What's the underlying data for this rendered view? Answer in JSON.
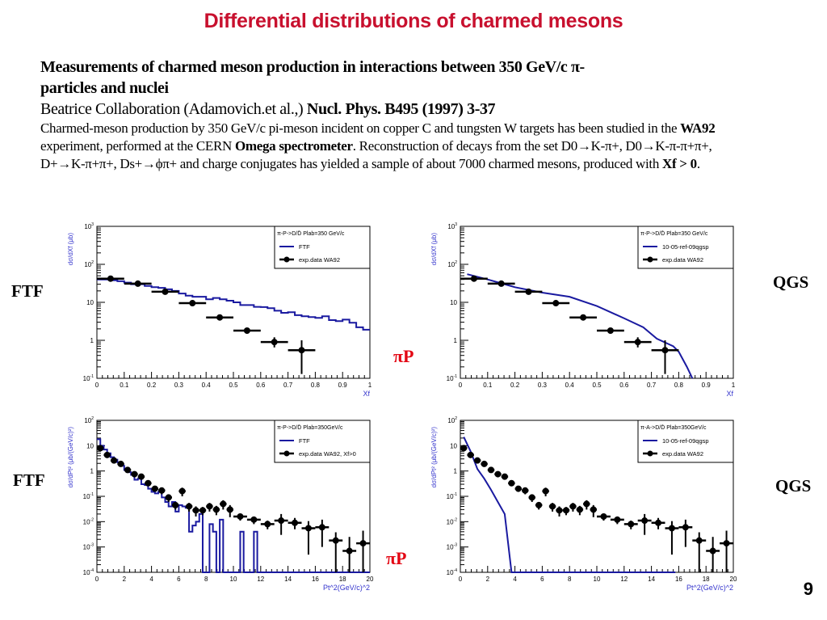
{
  "slide": {
    "title": "Differential distributions of charmed mesons",
    "heading_line1": "Measurements of charmed meson production in interactions between 350 GeV/c π-",
    "heading_line2": "particles and nuclei",
    "cite_plain": "Beatrice Collaboration (Adamovich.et al.,) ",
    "cite_bold": "Nucl. Phys. B495 (1997) 3-37",
    "body_p1": "Charmed-meson production by 350 GeV/c  pi-meson  incident on copper C and tungsten W targets has been studied in the ",
    "body_b1": "WA92",
    "body_p2": " experiment, performed at the CERN ",
    "body_b2": "Omega spectrometer",
    "body_p3": ". Reconstruction of decays from the set D0→K-π+,  D0→K-π-π+π+,  D+→K-π+π+,  Ds+→ϕπ+  and charge conjugates has yielded a sample of about 7000 charmed mesons, produced with ",
    "body_b3": "Xf > 0",
    "body_p4": ".",
    "labels": {
      "ftf_top": "FTF",
      "ftf_bottom": "FTF",
      "qgs_top": "QGS",
      "qgs_bottom": "QGS",
      "pip_top": "πP",
      "pip_bottom": "πP"
    },
    "page_number": "9",
    "colors": {
      "title": "#c8102e",
      "pip": "#e30613",
      "model": "#1a1aa0",
      "axis_label": "#3333cc",
      "data": "#000000"
    }
  },
  "chart_data": [
    {
      "id": "xf-ftf",
      "type": "line",
      "scale_y": "log",
      "xlabel": "Xf",
      "ylabel": "dσ/dXf (μb)",
      "xlim": [
        0,
        1
      ],
      "ylim": [
        0.1,
        1000
      ],
      "xticks": [
        "0",
        "0.1",
        "0.2",
        "0.3",
        "0.4",
        "0.5",
        "0.6",
        "0.7",
        "0.8",
        "0.9",
        "1"
      ],
      "yticks": [
        "10^-1",
        "1",
        "10",
        "10^2",
        "10^3"
      ],
      "legend": {
        "position": "top-right",
        "header": "π-P->D/D̄  Plab=350 GeV/c",
        "entries": [
          "FTF",
          "exp.data WA92"
        ]
      },
      "model": {
        "name": "FTF",
        "style": "step",
        "x": [
          0,
          0.025,
          0.05,
          0.075,
          0.1,
          0.125,
          0.15,
          0.175,
          0.2,
          0.225,
          0.25,
          0.275,
          0.3,
          0.325,
          0.35,
          0.375,
          0.4,
          0.425,
          0.45,
          0.475,
          0.5,
          0.525,
          0.55,
          0.575,
          0.6,
          0.625,
          0.65,
          0.675,
          0.7,
          0.725,
          0.75,
          0.775,
          0.8,
          0.825,
          0.85,
          0.875,
          0.9,
          0.925,
          0.95,
          0.975,
          1.0
        ],
        "y": [
          40,
          40,
          38,
          36,
          33,
          30,
          30,
          27,
          25,
          24,
          22,
          20,
          17,
          15,
          14,
          14,
          12,
          13,
          12,
          11,
          10,
          8.5,
          8.5,
          7.6,
          7.5,
          7,
          6,
          5.3,
          5.5,
          4.6,
          4.3,
          4.1,
          3.9,
          4.3,
          3.4,
          3.2,
          3.5,
          2.9,
          2.2,
          1.9,
          1.3
        ]
      },
      "data": {
        "name": "exp.data WA92",
        "x": [
          0.05,
          0.15,
          0.25,
          0.35,
          0.45,
          0.55,
          0.65,
          0.75
        ],
        "xerr": 0.05,
        "y": [
          42,
          31,
          19,
          9.5,
          4.0,
          1.8,
          0.9,
          0.55
        ],
        "yerr_lo": [
          4,
          3,
          2,
          1,
          0.5,
          0.3,
          0.25,
          0.42
        ],
        "yerr_hi": [
          4,
          3,
          2,
          1,
          0.5,
          0.3,
          0.3,
          0.45
        ]
      }
    },
    {
      "id": "xf-qgs",
      "type": "line",
      "scale_y": "log",
      "xlabel": "Xf",
      "ylabel": "dσ/dXf (μb)",
      "xlim": [
        0,
        1
      ],
      "ylim": [
        0.1,
        1000
      ],
      "xticks": [
        "0",
        "0.1",
        "0.2",
        "0.3",
        "0.4",
        "0.5",
        "0.6",
        "0.7",
        "0.8",
        "0.9",
        "1"
      ],
      "yticks": [
        "10^-1",
        "1",
        "10",
        "10^2",
        "10^3"
      ],
      "legend": {
        "position": "top-right",
        "header": "π-P->D/D̄  Plab=350 GeV/c",
        "entries": [
          "10-05-ref-09qgsp",
          "exp.data WA92"
        ]
      },
      "model": {
        "name": "10-05-ref-09qgsp",
        "style": "line",
        "x": [
          0.025,
          0.1,
          0.2,
          0.3,
          0.4,
          0.5,
          0.6,
          0.67,
          0.72,
          0.78,
          0.8,
          0.83,
          0.85
        ],
        "y": [
          55,
          40,
          25,
          18,
          14,
          8,
          3.8,
          2.2,
          1.1,
          0.7,
          0.5,
          0.2,
          0.1
        ]
      },
      "data": {
        "name": "exp.data WA92",
        "x": [
          0.05,
          0.15,
          0.25,
          0.35,
          0.45,
          0.55,
          0.65,
          0.75
        ],
        "xerr": 0.05,
        "y": [
          42,
          31,
          19,
          9.5,
          4.0,
          1.8,
          0.9,
          0.55
        ],
        "yerr_lo": [
          4,
          3,
          2,
          1,
          0.5,
          0.3,
          0.25,
          0.42
        ],
        "yerr_hi": [
          4,
          3,
          2,
          1,
          0.5,
          0.3,
          0.3,
          0.45
        ]
      }
    },
    {
      "id": "pt2-ftf",
      "type": "line",
      "scale_y": "log",
      "xlabel": "Pt^2(GeV/c)^2",
      "ylabel": "dσ/dPt² (μb/(GeV/c)²)",
      "xlim": [
        0,
        20
      ],
      "ylim": [
        0.0001,
        100
      ],
      "xticks": [
        "0",
        "2",
        "4",
        "6",
        "8",
        "10",
        "12",
        "14",
        "16",
        "18",
        "20"
      ],
      "yticks": [
        "10^-4",
        "10^-3",
        "10^-2",
        "10^-1",
        "1",
        "10",
        "10^2"
      ],
      "legend": {
        "position": "top-right",
        "header": "π-P->D/D̄  Plab=350GeV/c",
        "entries": [
          "FTF",
          "exp.data WA92, Xf>0"
        ]
      },
      "model": {
        "name": "FTF",
        "style": "step",
        "x": [
          0,
          0.25,
          0.5,
          0.75,
          1,
          1.25,
          1.5,
          1.75,
          2,
          2.25,
          2.5,
          2.75,
          3,
          3.25,
          3.5,
          3.75,
          4,
          4.25,
          4.5,
          4.75,
          5,
          5.25,
          5.5,
          5.75,
          6,
          6.25,
          6.5,
          6.75,
          7,
          7.25,
          7.5,
          7.75,
          8,
          8.25,
          8.5,
          8.75,
          9,
          9.25,
          9.5,
          9.75,
          10,
          10.25,
          10.5,
          10.75,
          11,
          11.25,
          11.5,
          11.75,
          12,
          20
        ],
        "y": [
          18,
          10,
          7,
          5,
          3.5,
          2.8,
          2.2,
          1.6,
          1.1,
          0.9,
          0.7,
          0.45,
          0.5,
          0.3,
          0.28,
          0.2,
          0.15,
          0.13,
          0.15,
          0.09,
          0.06,
          0.04,
          0.06,
          0.025,
          0.045,
          0.04,
          0.035,
          0.004,
          0.007,
          0.01,
          0.02,
          0.0001,
          0.0001,
          0.008,
          0.004,
          0.0001,
          0.012,
          0.0001,
          0.0001,
          0.0001,
          0.0001,
          0.0001,
          0.004,
          0.0001,
          0.0001,
          0.0001,
          0.004,
          0.0001,
          0.0001,
          0.0001
        ]
      },
      "data": {
        "name": "exp.data WA92, Xf>0",
        "x": [
          0.25,
          0.75,
          1.25,
          1.75,
          2.25,
          2.75,
          3.25,
          3.75,
          4.25,
          4.75,
          5.25,
          5.75,
          6.25,
          6.75,
          7.25,
          7.75,
          8.25,
          8.75,
          9.25,
          9.75,
          10.5,
          11.5,
          12.5,
          13.5,
          14.5,
          15.5,
          16.5,
          17.5,
          18.5,
          19.5
        ],
        "xerr": [
          0.25,
          0.25,
          0.25,
          0.25,
          0.25,
          0.25,
          0.25,
          0.25,
          0.25,
          0.25,
          0.25,
          0.25,
          0.25,
          0.25,
          0.25,
          0.25,
          0.25,
          0.25,
          0.25,
          0.25,
          0.5,
          0.5,
          0.5,
          0.5,
          0.5,
          0.5,
          0.5,
          0.5,
          0.5,
          0.5
        ],
        "y": [
          8,
          4.3,
          2.6,
          1.9,
          1.1,
          0.75,
          0.6,
          0.33,
          0.2,
          0.17,
          0.09,
          0.045,
          0.16,
          0.04,
          0.028,
          0.028,
          0.04,
          0.03,
          0.05,
          0.03,
          0.016,
          0.012,
          0.008,
          0.011,
          0.009,
          0.0055,
          0.006,
          0.0018,
          0.0007,
          0.0014
        ],
        "yerr_lo": [
          2,
          0.8,
          0.5,
          0.4,
          0.2,
          0.15,
          0.15,
          0.08,
          0.05,
          0.05,
          0.03,
          0.015,
          0.06,
          0.015,
          0.012,
          0.01,
          0.015,
          0.012,
          0.02,
          0.015,
          0.005,
          0.004,
          0.003,
          0.008,
          0.004,
          0.005,
          0.005,
          0.0017,
          0.0006,
          0.0013
        ],
        "yerr_hi": [
          2,
          0.8,
          0.5,
          0.4,
          0.2,
          0.15,
          0.15,
          0.08,
          0.05,
          0.05,
          0.03,
          0.015,
          0.06,
          0.015,
          0.012,
          0.01,
          0.015,
          0.012,
          0.02,
          0.015,
          0.005,
          0.004,
          0.003,
          0.009,
          0.005,
          0.005,
          0.006,
          0.002,
          0.0018,
          0.003
        ]
      }
    },
    {
      "id": "pt2-qgs",
      "type": "line",
      "scale_y": "log",
      "xlabel": "Pt^2(GeV/c)^2",
      "ylabel": "dσ/dPt² (μb/(GeV/c)²)",
      "xlim": [
        0,
        20
      ],
      "ylim": [
        0.0001,
        100
      ],
      "xticks": [
        "0",
        "2",
        "4",
        "6",
        "8",
        "10",
        "12",
        "14",
        "16",
        "18",
        "20"
      ],
      "yticks": [
        "10^-4",
        "10^-3",
        "10^-2",
        "10^-1",
        "1",
        "10",
        "10^2"
      ],
      "legend": {
        "position": "top-right",
        "header": "π-A->D/D̄  Plab=350GeV/c",
        "entries": [
          "10-05-ref-09qgsp",
          "exp.data WA92"
        ]
      },
      "model": {
        "name": "10-05-ref-09qgsp",
        "style": "line",
        "x": [
          0.25,
          0.75,
          1.25,
          1.75,
          2.25,
          2.75,
          3.25,
          3.75,
          4,
          8,
          12,
          15.75
        ],
        "y": [
          22,
          6,
          1.2,
          0.5,
          0.18,
          0.06,
          0.02,
          0.0001,
          0.0001,
          0.0001,
          0.0001,
          0.0001
        ]
      },
      "data": {
        "name": "exp.data WA92",
        "x": [
          0.25,
          0.75,
          1.25,
          1.75,
          2.25,
          2.75,
          3.25,
          3.75,
          4.25,
          4.75,
          5.25,
          5.75,
          6.25,
          6.75,
          7.25,
          7.75,
          8.25,
          8.75,
          9.25,
          9.75,
          10.5,
          11.5,
          12.5,
          13.5,
          14.5,
          15.5,
          16.5,
          17.5,
          18.5,
          19.5
        ],
        "xerr": [
          0.25,
          0.25,
          0.25,
          0.25,
          0.25,
          0.25,
          0.25,
          0.25,
          0.25,
          0.25,
          0.25,
          0.25,
          0.25,
          0.25,
          0.25,
          0.25,
          0.25,
          0.25,
          0.25,
          0.25,
          0.5,
          0.5,
          0.5,
          0.5,
          0.5,
          0.5,
          0.5,
          0.5,
          0.5,
          0.5
        ],
        "y": [
          8,
          4.3,
          2.6,
          1.9,
          1.1,
          0.75,
          0.6,
          0.33,
          0.2,
          0.17,
          0.09,
          0.045,
          0.16,
          0.04,
          0.028,
          0.028,
          0.04,
          0.03,
          0.05,
          0.03,
          0.016,
          0.012,
          0.008,
          0.011,
          0.009,
          0.0055,
          0.006,
          0.0018,
          0.0007,
          0.0014
        ],
        "yerr_lo": [
          2,
          0.8,
          0.5,
          0.4,
          0.2,
          0.15,
          0.15,
          0.08,
          0.05,
          0.05,
          0.03,
          0.015,
          0.06,
          0.015,
          0.012,
          0.01,
          0.015,
          0.012,
          0.02,
          0.015,
          0.005,
          0.004,
          0.003,
          0.008,
          0.004,
          0.005,
          0.005,
          0.0017,
          0.0006,
          0.0013
        ],
        "yerr_hi": [
          2,
          0.8,
          0.5,
          0.4,
          0.2,
          0.15,
          0.15,
          0.08,
          0.05,
          0.05,
          0.03,
          0.015,
          0.06,
          0.015,
          0.012,
          0.01,
          0.015,
          0.012,
          0.02,
          0.015,
          0.005,
          0.004,
          0.003,
          0.009,
          0.005,
          0.005,
          0.006,
          0.002,
          0.0018,
          0.003
        ]
      }
    }
  ]
}
